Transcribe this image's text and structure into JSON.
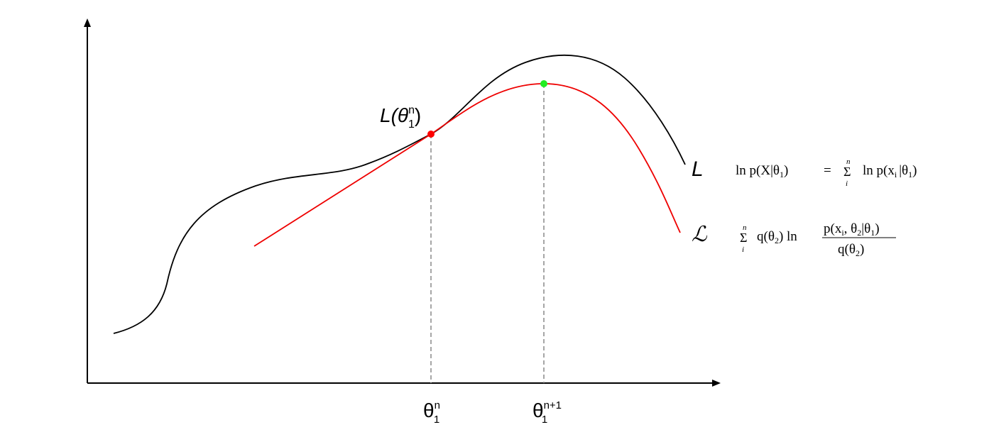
{
  "point_label": {
    "text": "L(θ",
    "sup": "n",
    "sub": "1",
    "close": ")"
  },
  "x_labels": [
    {
      "text": "θ",
      "sup": "n",
      "sub": "1"
    },
    {
      "text": "θ",
      "sup": "n+1",
      "sub": "1"
    }
  ],
  "curves": [
    {
      "label": "L",
      "formula": {
        "lhs": "ln p(X|θ",
        "lhs_sub": "1",
        "lhs_close": ")",
        "eq": "=",
        "sum_top": "n",
        "sum_sym": "Σ",
        "sum_bottom": "i",
        "rhs": "ln p(x",
        "rhs_sub": "i",
        "rhs_mid": "|θ",
        "rhs_sub2": "1",
        "rhs_close": ")"
      }
    },
    {
      "label": "ℒ",
      "formula": {
        "sum_top": "n",
        "sum_sym": "Σ",
        "sum_bottom": "i",
        "q": "q(θ",
        "q_sub": "2",
        "q_close": ") ln",
        "num": "p(x",
        "num_sub": "i",
        "num_mid": ", θ",
        "num_sub2": "2",
        "num_mid2": "|θ",
        "num_sub3": "1",
        "num_close": ")",
        "den": "q(θ",
        "den_sub": "2",
        "den_close": ")"
      }
    }
  ]
}
